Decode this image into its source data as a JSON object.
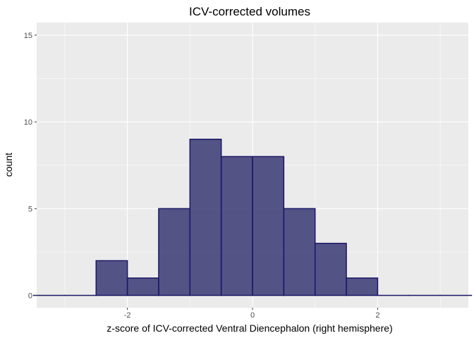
{
  "chart_data": {
    "type": "bar",
    "title": "ICV-corrected volumes",
    "xlabel": "z-score of ICV-corrected Ventral Diencephalon (right hemisphere)",
    "ylabel": "count",
    "xlim": [
      -3.45,
      3.45
    ],
    "ylim": [
      0,
      15
    ],
    "x_ticks": [
      -2,
      0,
      2
    ],
    "x_tick_labels": [
      "-2",
      "0",
      "2"
    ],
    "y_ticks": [
      0,
      5,
      10,
      15
    ],
    "y_tick_labels": [
      "0",
      "5",
      "10",
      "15"
    ],
    "bin_width": 0.5,
    "bins": [
      {
        "x0": -3.5,
        "x1": -3.0,
        "count": 0
      },
      {
        "x0": -3.0,
        "x1": -2.5,
        "count": 0
      },
      {
        "x0": -2.5,
        "x1": -2.0,
        "count": 2
      },
      {
        "x0": -2.0,
        "x1": -1.5,
        "count": 1
      },
      {
        "x0": -1.5,
        "x1": -1.0,
        "count": 5
      },
      {
        "x0": -1.0,
        "x1": -0.5,
        "count": 9
      },
      {
        "x0": -0.5,
        "x1": 0.0,
        "count": 8
      },
      {
        "x0": 0.0,
        "x1": 0.5,
        "count": 8
      },
      {
        "x0": 0.5,
        "x1": 1.0,
        "count": 5
      },
      {
        "x0": 1.0,
        "x1": 1.5,
        "count": 3
      },
      {
        "x0": 1.5,
        "x1": 2.0,
        "count": 1
      },
      {
        "x0": 2.0,
        "x1": 2.5,
        "count": 0
      },
      {
        "x0": 2.5,
        "x1": 3.0,
        "count": 0
      },
      {
        "x0": 3.0,
        "x1": 3.5,
        "count": 0
      }
    ],
    "grid": true,
    "colors": {
      "panel_background": "#ebebeb",
      "grid_major": "#ffffff",
      "bar_fill": "#3f3d78",
      "bar_outline": "#1a1766"
    }
  }
}
